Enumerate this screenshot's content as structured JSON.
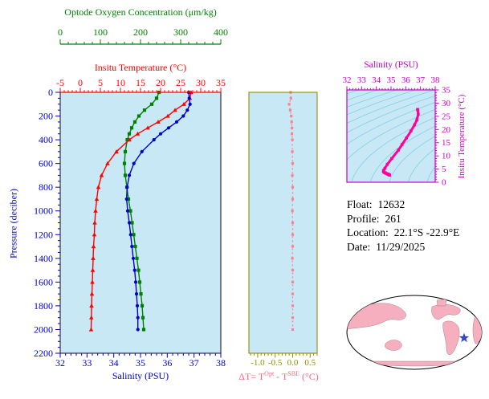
{
  "colors": {
    "oxygen": "#008000",
    "temperature": "#ff0000",
    "salinity": "#0000cc",
    "pressure_axis": "#0000cc",
    "ts_accent": "#cc00cc",
    "ts_curve": "#ff0099",
    "delta_axis": "#8f8f00",
    "delta_curve": "#ff8090",
    "delta_label": "#ff6680",
    "plot_bg": "#c9e8f6",
    "contour": "#7fd0e4",
    "frame": "#111111",
    "land": "#f5afbe",
    "ocean": "#ffffff",
    "star": "#3344cc"
  },
  "info": {
    "lines": [
      {
        "label": "Float:",
        "value": "12632"
      },
      {
        "label": "Profile:",
        "value": "261"
      },
      {
        "label": "Location:",
        "value": "22.1°S -22.9°E"
      },
      {
        "label": "Date:",
        "value": "11/29/2025"
      }
    ]
  },
  "chart_data": [
    {
      "id": "profile",
      "type": "line",
      "orientation": "vertical-profile",
      "y_axis": {
        "label": "Pressure (deciber)",
        "range": [
          0,
          2200
        ],
        "ticks": [
          0,
          200,
          400,
          600,
          800,
          1000,
          1200,
          1400,
          1600,
          1800,
          2000,
          2200
        ],
        "reversed": true
      },
      "x_axes": [
        {
          "id": "oxygen",
          "label": "Optode Oxygen Concentration (μm/kg)",
          "range": [
            0,
            400
          ],
          "ticks": [
            0,
            100,
            200,
            300,
            400
          ]
        },
        {
          "id": "temperature",
          "label": "Insitu Temperature (°C)",
          "range": [
            -5,
            35
          ],
          "ticks": [
            -5,
            0,
            5,
            10,
            15,
            20,
            25,
            30,
            35
          ]
        },
        {
          "id": "salinity",
          "label": "Salinity (PSU)",
          "range": [
            32,
            38
          ],
          "ticks": [
            32,
            33,
            34,
            35,
            36,
            37,
            38
          ]
        }
      ],
      "pressure": [
        0,
        50,
        100,
        150,
        200,
        250,
        300,
        350,
        400,
        500,
        600,
        700,
        800,
        900,
        1000,
        1100,
        1200,
        1300,
        1400,
        1500,
        1600,
        1700,
        1800,
        1900,
        2000
      ],
      "series": [
        {
          "name": "oxygen",
          "axis": "oxygen",
          "marker": "square",
          "values": [
            246,
            240,
            228,
            210,
            196,
            186,
            178,
            172,
            167,
            162,
            160,
            162,
            166,
            170,
            175,
            179,
            183,
            187,
            191,
            195,
            198,
            201,
            204,
            206,
            208
          ]
        },
        {
          "name": "temperature",
          "axis": "temperature",
          "marker": "triangle",
          "values": [
            27.6,
            27.3,
            25.8,
            23.6,
            21.8,
            19.4,
            16.8,
            14.3,
            12.2,
            9.0,
            6.8,
            5.3,
            4.5,
            4.1,
            3.8,
            3.6,
            3.5,
            3.3,
            3.2,
            3.1,
            3.0,
            2.9,
            2.8,
            2.75,
            2.7
          ]
        },
        {
          "name": "salinity",
          "axis": "salinity",
          "marker": "circle",
          "values": [
            36.8,
            36.82,
            36.85,
            36.75,
            36.6,
            36.35,
            36.05,
            35.75,
            35.5,
            35.05,
            34.75,
            34.58,
            34.5,
            34.48,
            34.52,
            34.58,
            34.63,
            34.68,
            34.73,
            34.78,
            34.82,
            34.85,
            34.88,
            34.9,
            34.9
          ]
        }
      ]
    },
    {
      "id": "delta_t",
      "type": "line",
      "x_axis": {
        "label_main": "ΔT= T",
        "label_sup1": "Opt",
        "label_mid": " - T",
        "label_sup2": "SBE",
        "label_end": " (°C)",
        "range": [
          -1.25,
          0.7
        ],
        "ticks": [
          -1.0,
          -0.5,
          0.0,
          0.5
        ],
        "tick_labels": [
          "-1.0",
          "-0.5",
          "0.0",
          "0.5"
        ]
      },
      "pressure": [
        0,
        50,
        100,
        150,
        200,
        250,
        300,
        350,
        400,
        500,
        600,
        700,
        800,
        900,
        1000,
        1100,
        1200,
        1300,
        1400,
        1500,
        1600,
        1700,
        1800,
        1900,
        2000
      ],
      "values": [
        -0.06,
        -0.05,
        -0.1,
        -0.07,
        -0.04,
        -0.03,
        -0.02,
        -0.02,
        -0.01,
        -0.01,
        0.0,
        -0.01,
        0.0,
        0.0,
        -0.01,
        0.0,
        0.0,
        0.0,
        -0.01,
        0.0,
        0.0,
        0.0,
        0.0,
        0.0,
        0.0
      ]
    },
    {
      "id": "ts_diagram",
      "type": "line",
      "x_axis": {
        "label": "Salinity (PSU)",
        "range": [
          32,
          38
        ],
        "ticks": [
          32,
          33,
          34,
          35,
          36,
          37,
          38
        ]
      },
      "y_axis": {
        "label": "Insitu Temperature (°C)",
        "range": [
          0,
          35
        ],
        "ticks": [
          0,
          5,
          10,
          15,
          20,
          25,
          30,
          35
        ]
      },
      "source_series": "profile salinity vs temperature",
      "background": "density contour lines"
    }
  ],
  "map": {
    "marker": "star"
  }
}
